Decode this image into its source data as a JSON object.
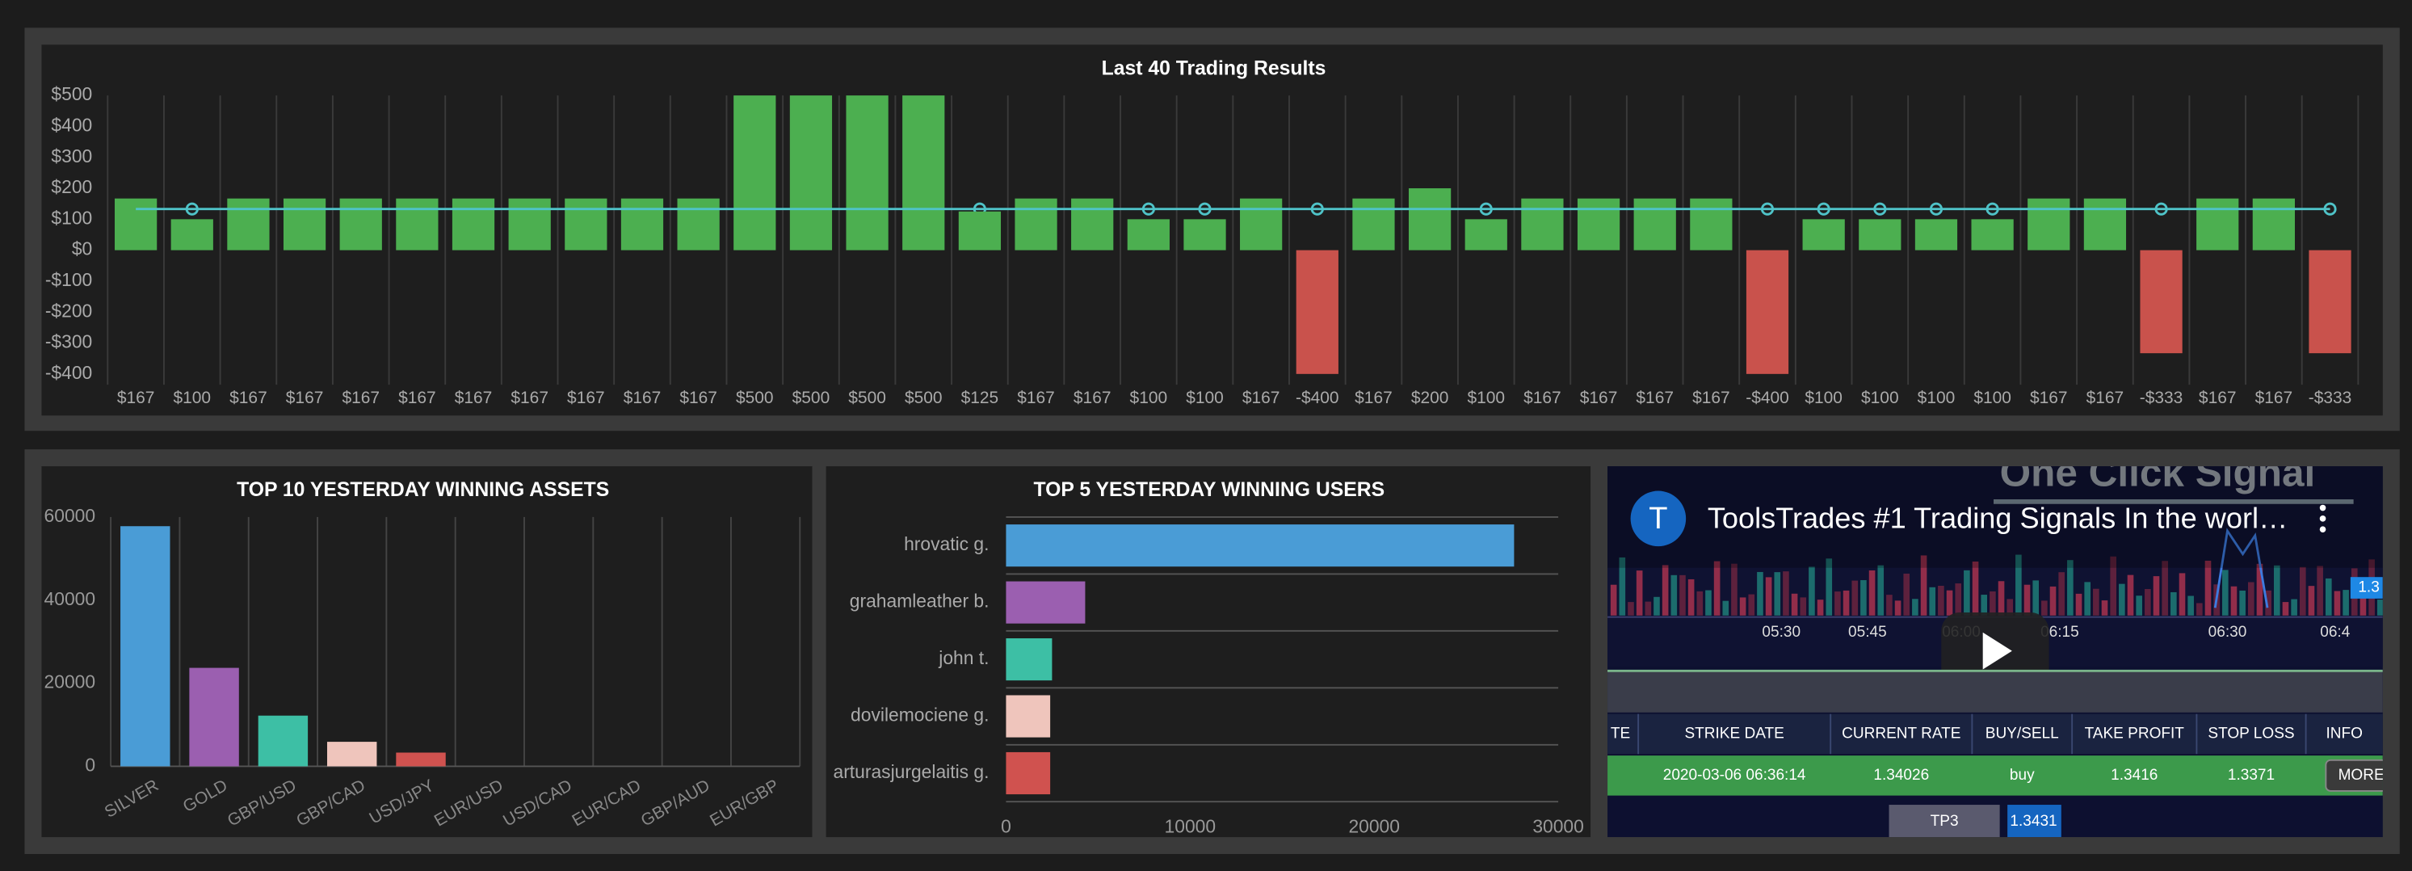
{
  "chart_data": [
    {
      "type": "bar",
      "title": "Last 40 Trading Results",
      "values": [
        167,
        100,
        167,
        167,
        167,
        167,
        167,
        167,
        167,
        167,
        167,
        500,
        500,
        500,
        500,
        125,
        167,
        167,
        100,
        100,
        167,
        -400,
        167,
        200,
        100,
        167,
        167,
        167,
        167,
        -400,
        100,
        100,
        100,
        100,
        167,
        167,
        -333,
        167,
        167,
        -333
      ],
      "value_labels": [
        "$167",
        "$100",
        "$167",
        "$167",
        "$167",
        "$167",
        "$167",
        "$167",
        "$167",
        "$167",
        "$167",
        "$500",
        "$500",
        "$500",
        "$500",
        "$125",
        "$167",
        "$167",
        "$100",
        "$100",
        "$167",
        "-$400",
        "$167",
        "$200",
        "$100",
        "$167",
        "$167",
        "$167",
        "$167",
        "-$400",
        "$100",
        "$100",
        "$100",
        "$100",
        "$167",
        "$167",
        "-$333",
        "$167",
        "$167",
        "-$333"
      ],
      "positive_color": "#4caf50",
      "negative_color": "#c9524c",
      "average_line": {
        "value": 133,
        "color": "#4fc3c8"
      },
      "ylim": [
        -400,
        500
      ],
      "yticks": [
        {
          "value": -400,
          "label": "-$400"
        },
        {
          "value": -300,
          "label": "-$300"
        },
        {
          "value": -200,
          "label": "-$200"
        },
        {
          "value": -100,
          "label": "-$100"
        },
        {
          "value": 0,
          "label": "$0"
        },
        {
          "value": 100,
          "label": "$100"
        },
        {
          "value": 200,
          "label": "$200"
        },
        {
          "value": 300,
          "label": "$300"
        },
        {
          "value": 400,
          "label": "$400"
        },
        {
          "value": 500,
          "label": "$500"
        }
      ]
    },
    {
      "type": "bar",
      "title": "TOP 10 YESTERDAY WINNING ASSETS",
      "categories": [
        "SILVER",
        "GOLD",
        "GBP/USD",
        "GBP/CAD",
        "USD/JPY",
        "EUR/USD",
        "USD/CAD",
        "EUR/CAD",
        "GBP/AUD",
        "EUR/GBP"
      ],
      "values": [
        57800,
        23700,
        12200,
        5900,
        3300,
        0,
        0,
        0,
        0,
        0
      ],
      "colors": [
        "#4a9cd6",
        "#9b5fb0",
        "#3dbfa5",
        "#efc5bc",
        "#d0524f",
        "#4a9cd6",
        "#9b5fb0",
        "#3dbfa5",
        "#efc5bc",
        "#d0524f"
      ],
      "ylim": [
        0,
        60000
      ],
      "yticks": [
        0,
        20000,
        40000,
        60000
      ]
    },
    {
      "type": "bar",
      "orientation": "horizontal",
      "title": "TOP 5 YESTERDAY WINNING USERS",
      "categories": [
        "hrovatic g.",
        "grahamleather b.",
        "john t.",
        "dovilemociene g.",
        "arturasjurgelaitis g."
      ],
      "values": [
        27600,
        4300,
        2500,
        2400,
        2400
      ],
      "colors": [
        "#4a9cd6",
        "#9b5fb0",
        "#3dbfa5",
        "#efc5bc",
        "#d0524f"
      ],
      "xlim": [
        0,
        30000
      ],
      "xticks": [
        0,
        10000,
        20000,
        30000
      ]
    }
  ],
  "video": {
    "channel_initial": "T",
    "title": "ToolsTrades #1 Trading Signals In the worl…",
    "overlay_text": "One Click Signal",
    "times": [
      "05:30",
      "05:45",
      "06:00",
      "06:15",
      "06:30",
      "06:4"
    ],
    "price_tag": "1.3",
    "headers": [
      "TE",
      "STRIKE DATE",
      "CURRENT RATE",
      "BUY/SELL",
      "TAKE PROFIT",
      "STOP LOSS",
      "INFO"
    ],
    "row": [
      "2020-03-06 06:36:14",
      "1.34026",
      "buy",
      "1.3416",
      "1.3371"
    ],
    "more": "MORE",
    "tp_label": "TP3",
    "tp_value": "1.3431"
  }
}
